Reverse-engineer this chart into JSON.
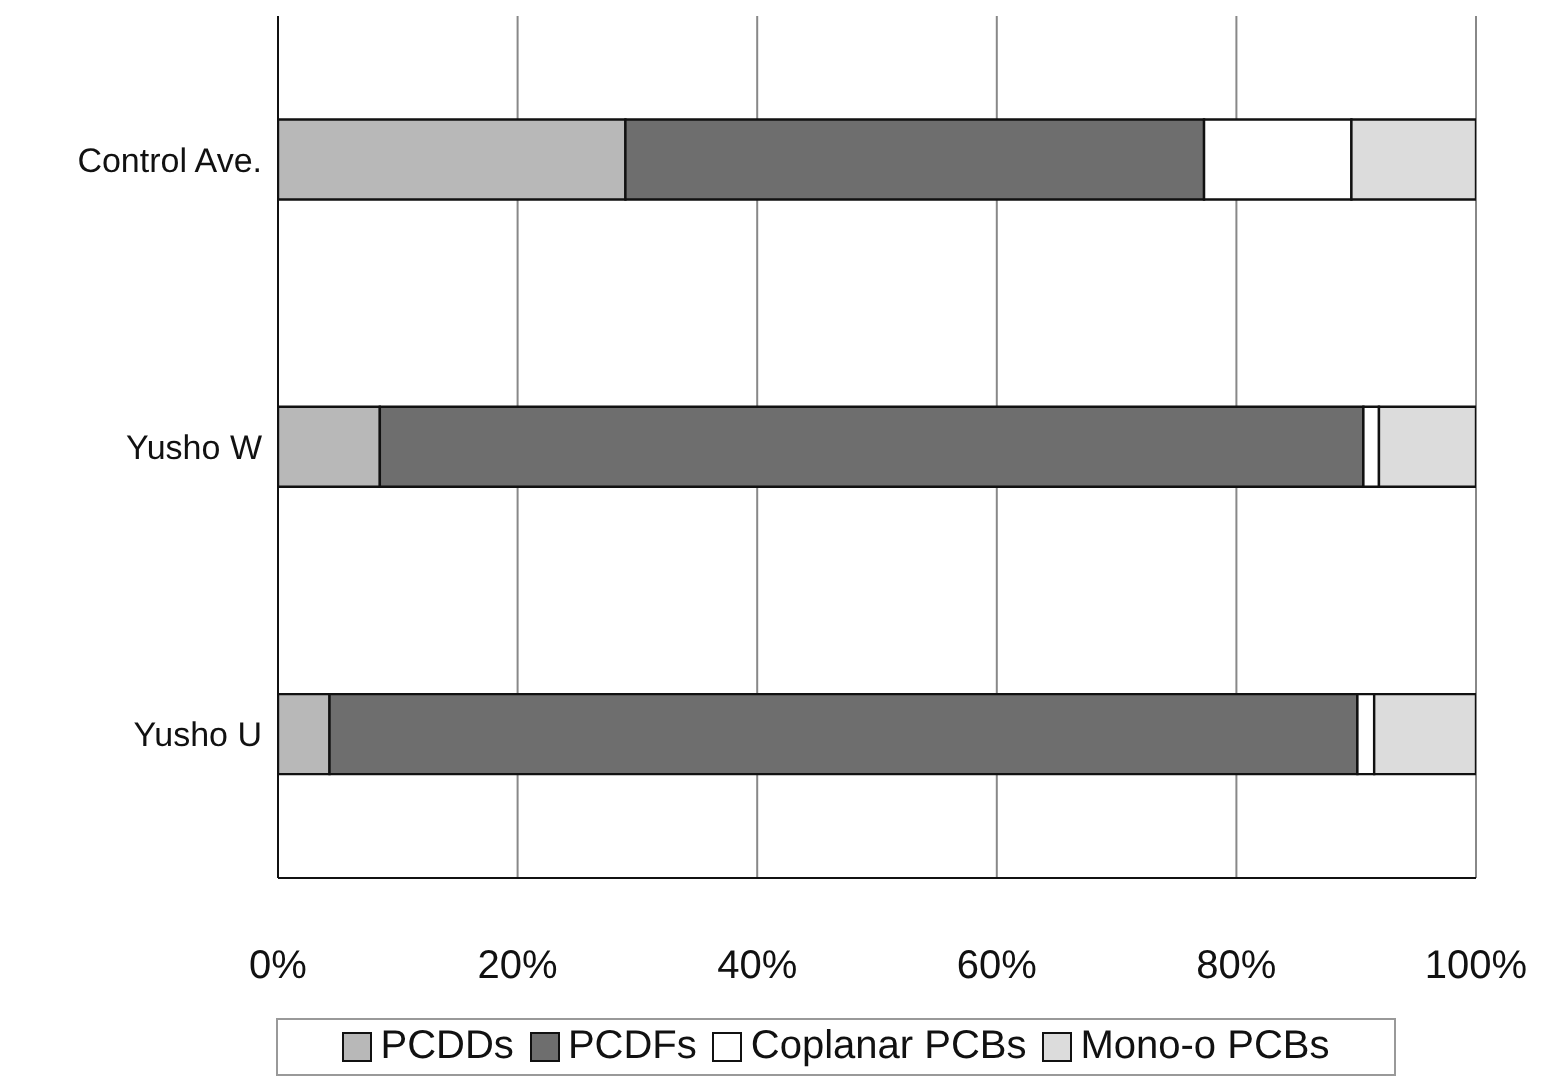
{
  "chart_data": {
    "type": "bar",
    "orientation": "horizontal",
    "stacked": true,
    "categories": [
      "Control Ave.",
      "Yusho W",
      "Yusho U"
    ],
    "series": [
      {
        "name": "PCDDs",
        "color": "#b8b8b8",
        "values": [
          29,
          8.5,
          4.3
        ]
      },
      {
        "name": "PCDFs",
        "color": "#6e6e6e",
        "values": [
          48.3,
          82.1,
          85.8
        ]
      },
      {
        "name": "Coplanar PCBs",
        "color": "#ffffff",
        "values": [
          12.3,
          1.3,
          1.4
        ]
      },
      {
        "name": "Mono-o PCBs",
        "color": "#dcdcdc",
        "values": [
          10.4,
          8.1,
          8.5
        ]
      }
    ],
    "xlim": [
      0,
      100
    ],
    "xticks": [
      {
        "value": 0,
        "label": "0%"
      },
      {
        "value": 20,
        "label": "20%"
      },
      {
        "value": 40,
        "label": "40%"
      },
      {
        "value": 60,
        "label": "60%"
      },
      {
        "value": 80,
        "label": "80%"
      },
      {
        "value": 100,
        "label": "100%"
      }
    ],
    "grid": "x",
    "legend": "bottom"
  }
}
